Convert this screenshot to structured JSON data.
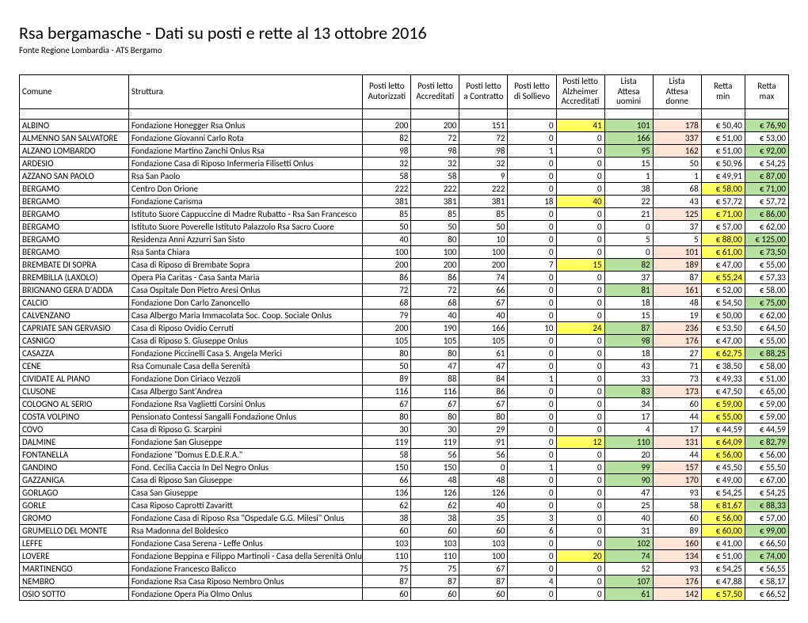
{
  "title": "Rsa bergamasche - Dati su posti e rette al 13 ottobre 2016",
  "source": "Fonte Regione Lombardia - ATS Bergamo",
  "columns": [
    "Comune",
    "Struttura",
    "Posti letto\nAutorizzati",
    "Posti letto\nAccreditati",
    "Posti letto\na Contratto",
    "Posti letto\ndi Sollievo",
    "Posti letto\nAlzheimer\nAccreditati",
    "Lista\nAttesa\nuomini",
    "Lista\nAttesa\ndonne",
    "Retta\nmin",
    "Retta\nmax"
  ],
  "colors": {
    "green": "#b7e1a1",
    "yellow": "#ffff66",
    "pink": "#fce4d6"
  },
  "rows": [
    {
      "c": "ALBINO",
      "s": "Fondazione Honegger Rsa Onlus",
      "v": [
        200,
        200,
        151,
        0,
        41,
        101,
        178
      ],
      "hl": {
        "4": "y",
        "5": "g",
        "6": "p"
      },
      "min": "€ 50,40",
      "max": "€ 76,90",
      "maxhl": "g"
    },
    {
      "c": "ALMENNO SAN SALVATORE",
      "s": "Fondazione Giovanni Carlo Rota",
      "v": [
        82,
        72,
        72,
        0,
        0,
        166,
        337
      ],
      "hl": {
        "5": "g",
        "6": "p"
      },
      "min": "€ 51,00",
      "max": "€ 53,00"
    },
    {
      "c": "ALZANO LOMBARDO",
      "s": "Fondazione Martino Zanchi Onlus Rsa",
      "v": [
        98,
        98,
        98,
        1,
        0,
        95,
        162
      ],
      "hl": {
        "5": "g",
        "6": "p"
      },
      "min": "€ 51,00",
      "max": "€ 92,00",
      "maxhl": "g"
    },
    {
      "c": "ARDESIO",
      "s": "Fondazione Casa di Riposo Infermeria Filisetti Onlus",
      "v": [
        32,
        32,
        32,
        0,
        0,
        15,
        50
      ],
      "min": "€ 50,96",
      "max": "€ 54,25"
    },
    {
      "c": "AZZANO SAN PAOLO",
      "s": "Rsa San Paolo",
      "v": [
        58,
        58,
        9,
        0,
        0,
        1,
        1
      ],
      "min": "€ 49,91",
      "max": "€ 87,00",
      "maxhl": "g"
    },
    {
      "c": "BERGAMO",
      "s": "Centro Don Orione",
      "v": [
        222,
        222,
        222,
        0,
        0,
        38,
        68
      ],
      "min": "€ 58,00",
      "minhl": "y",
      "max": "€ 71,00",
      "maxhl": "g"
    },
    {
      "c": "BERGAMO",
      "s": "Fondazione Carisma",
      "v": [
        381,
        381,
        381,
        18,
        40,
        22,
        43
      ],
      "hl": {
        "4": "y"
      },
      "min": "€ 57,72",
      "max": "€ 57,72"
    },
    {
      "c": "BERGAMO",
      "s": "Istituto Suore Cappuccine di Madre Rubatto - Rsa San Francesco",
      "v": [
        85,
        85,
        85,
        0,
        0,
        21,
        125
      ],
      "hl": {
        "6": "p"
      },
      "min": "€ 71,00",
      "minhl": "y",
      "max": "€ 86,00",
      "maxhl": "g"
    },
    {
      "c": "BERGAMO",
      "s": "Istituto Suore Poverelle Istituto Palazzolo Rsa Sacro Cuore",
      "v": [
        50,
        50,
        50,
        0,
        0,
        0,
        37
      ],
      "min": "€ 57,00",
      "max": "€ 62,00"
    },
    {
      "c": "BERGAMO",
      "s": "Residenza Anni Azzurri San Sisto",
      "v": [
        40,
        80,
        10,
        0,
        0,
        5,
        5
      ],
      "min": "€ 88,00",
      "minhl": "y",
      "max": "€ 125,00",
      "maxhl": "g"
    },
    {
      "c": "BERGAMO",
      "s": "Rsa Santa Chiara",
      "v": [
        100,
        100,
        100,
        0,
        0,
        0,
        101
      ],
      "hl": {
        "6": "p"
      },
      "min": "€ 61,00",
      "minhl": "y",
      "max": "€ 73,50",
      "maxhl": "g"
    },
    {
      "c": "BREMBATE DI SOPRA",
      "s": "Casa di Riposo di Brembate Sopra",
      "v": [
        200,
        200,
        200,
        7,
        15,
        82,
        189
      ],
      "hl": {
        "4": "y",
        "5": "g",
        "6": "p"
      },
      "min": "€ 47,00",
      "max": "€ 55,00"
    },
    {
      "c": "BREMBILLA (LAXOLO)",
      "s": "Opera Pia Caritas - Casa Santa Maria",
      "v": [
        86,
        86,
        74,
        0,
        0,
        37,
        87
      ],
      "min": "€ 55,24",
      "minhl": "y",
      "max": "€ 57,33"
    },
    {
      "c": "BRIGNANO GERA D'ADDA",
      "s": "Casa Ospitale Don Pietro Aresi Onlus",
      "v": [
        72,
        72,
        66,
        0,
        0,
        81,
        161
      ],
      "hl": {
        "5": "g",
        "6": "p"
      },
      "min": "€ 52,00",
      "max": "€ 58,00"
    },
    {
      "c": "CALCIO",
      "s": "Fondazione Don Carlo Zanoncello",
      "v": [
        68,
        68,
        67,
        0,
        0,
        18,
        48
      ],
      "min": "€ 54,50",
      "max": "€ 75,00",
      "maxhl": "g"
    },
    {
      "c": "CALVENZANO",
      "s": "Casa Albergo Maria Immacolata Soc. Coop. Sociale Onlus",
      "v": [
        79,
        40,
        40,
        0,
        0,
        15,
        19
      ],
      "min": "€ 50,00",
      "max": "€ 62,00"
    },
    {
      "c": "CAPRIATE SAN GERVASIO",
      "s": "Casa di Riposo Ovidio Cerruti",
      "v": [
        200,
        190,
        166,
        10,
        24,
        87,
        236
      ],
      "hl": {
        "4": "y",
        "5": "g",
        "6": "p"
      },
      "min": "€ 53,50",
      "max": "€ 64,50"
    },
    {
      "c": "CASNIGO",
      "s": "Casa di Riposo S. Giuseppe Onlus",
      "v": [
        105,
        105,
        105,
        0,
        0,
        98,
        176
      ],
      "hl": {
        "5": "g",
        "6": "p"
      },
      "min": "€ 47,00",
      "max": "€ 55,00"
    },
    {
      "c": "CASAZZA",
      "s": "Fondazione Piccinelli Casa S. Angela Merici",
      "v": [
        80,
        80,
        61,
        0,
        0,
        18,
        27
      ],
      "min": "€ 62,75",
      "minhl": "y",
      "max": "€ 88,25",
      "maxhl": "g"
    },
    {
      "c": "CENE",
      "s": "Rsa Comunale Casa della Serenità",
      "v": [
        50,
        47,
        47,
        0,
        0,
        43,
        71
      ],
      "min": "€ 38,50",
      "max": "€ 58,00"
    },
    {
      "c": "CIVIDATE AL PIANO",
      "s": "Fondazione Don Ciriaco Vezzoli",
      "v": [
        89,
        88,
        84,
        1,
        0,
        33,
        73
      ],
      "min": "€ 49,33",
      "max": "€ 51,00"
    },
    {
      "c": "CLUSONE",
      "s": "Casa Albergo Sant'Andrea",
      "v": [
        116,
        116,
        86,
        0,
        0,
        83,
        173
      ],
      "hl": {
        "5": "g",
        "6": "p"
      },
      "min": "€ 47,50",
      "max": "€ 65,00"
    },
    {
      "c": "COLOGNO AL SERIO",
      "s": "Fondazione Rsa Vaglietti Corsini Onlus",
      "v": [
        67,
        67,
        67,
        0,
        0,
        34,
        60
      ],
      "min": "€ 59,00",
      "minhl": "y",
      "max": "€ 59,00"
    },
    {
      "c": "COSTA VOLPINO",
      "s": "Pensionato Contessi Sangalli Fondazione Onlus",
      "v": [
        80,
        80,
        80,
        0,
        0,
        17,
        44
      ],
      "min": "€ 55,00",
      "minhl": "y",
      "max": "€ 59,00"
    },
    {
      "c": "COVO",
      "s": "Casa di Riposo G. Scarpini",
      "v": [
        30,
        30,
        29,
        0,
        0,
        4,
        17
      ],
      "min": "€ 44,59",
      "max": "€ 44,59"
    },
    {
      "c": "DALMINE",
      "s": "Fondazione San Giuseppe",
      "v": [
        119,
        119,
        91,
        0,
        12,
        110,
        131
      ],
      "hl": {
        "4": "y",
        "5": "g",
        "6": "p"
      },
      "min": "€ 64,09",
      "minhl": "y",
      "max": "€ 82,79",
      "maxhl": "g"
    },
    {
      "c": "FONTANELLA",
      "s": "Fondazione \"Domus E.D.E.R.A.\"",
      "v": [
        58,
        56,
        56,
        0,
        0,
        20,
        44
      ],
      "min": "€ 56,00",
      "minhl": "y",
      "max": "€ 56,00"
    },
    {
      "c": "GANDINO",
      "s": "Fond. Cecilia Caccia In Del Negro Onlus",
      "v": [
        150,
        150,
        0,
        1,
        0,
        99,
        157
      ],
      "hl": {
        "5": "g",
        "6": "p"
      },
      "min": "€ 45,50",
      "max": "€ 55,50"
    },
    {
      "c": "GAZZANIGA",
      "s": "Casa di Riposo San Giuseppe",
      "v": [
        66,
        48,
        48,
        0,
        0,
        90,
        170
      ],
      "hl": {
        "5": "g",
        "6": "p"
      },
      "min": "€ 49,00",
      "max": "€ 67,00"
    },
    {
      "c": "GORLAGO",
      "s": "Casa San Giuseppe",
      "v": [
        136,
        126,
        126,
        0,
        0,
        47,
        93
      ],
      "min": "€ 54,25",
      "max": "€ 54,25"
    },
    {
      "c": "GORLE",
      "s": "Casa Riposo Caprotti Zavaritt",
      "v": [
        62,
        62,
        40,
        0,
        0,
        25,
        58
      ],
      "min": "€ 81,67",
      "minhl": "y",
      "max": "€ 88,33",
      "maxhl": "g"
    },
    {
      "c": "GROMO",
      "s": "Fondazione Casa di Riposo Rsa \"Ospedale G.G. Milesi\" Onlus",
      "v": [
        38,
        38,
        35,
        3,
        0,
        40,
        60
      ],
      "min": "€ 56,00",
      "minhl": "y",
      "max": "€ 57,00"
    },
    {
      "c": "GRUMELLO DEL MONTE",
      "s": "Rsa Madonna del Boldesico",
      "v": [
        60,
        60,
        60,
        6,
        0,
        31,
        89
      ],
      "min": "€ 60,00",
      "minhl": "y",
      "max": "€ 99,00",
      "maxhl": "g"
    },
    {
      "c": "LEFFE",
      "s": "Fondazione Casa Serena - Leffe Onlus",
      "v": [
        103,
        103,
        103,
        0,
        0,
        102,
        160
      ],
      "hl": {
        "5": "g",
        "6": "p"
      },
      "min": "€ 41,00",
      "max": "€ 66,50"
    },
    {
      "c": "LOVERE",
      "s": "Fondazione Beppina e Filippo Martinoli - Casa della Serenità Onlus",
      "v": [
        110,
        110,
        100,
        0,
        20,
        74,
        134
      ],
      "hl": {
        "4": "y",
        "5": "g",
        "6": "p"
      },
      "min": "€ 51,00",
      "max": "€ 74,00",
      "maxhl": "g"
    },
    {
      "c": "MARTINENGO",
      "s": "Fondazione Francesco Balicco",
      "v": [
        75,
        75,
        67,
        0,
        0,
        52,
        93
      ],
      "min": "€ 54,25",
      "max": "€ 56,55"
    },
    {
      "c": "NEMBRO",
      "s": "Fondazione Rsa Casa Riposo Nembro Onlus",
      "v": [
        87,
        87,
        87,
        4,
        0,
        107,
        176
      ],
      "hl": {
        "5": "g",
        "6": "p"
      },
      "min": "€ 47,88",
      "max": "€ 58,17"
    },
    {
      "c": "OSIO SOTTO",
      "s": "Fondazione Opera Pia Olmo Onlus",
      "v": [
        60,
        60,
        60,
        0,
        0,
        61,
        142
      ],
      "hl": {
        "5": "g",
        "6": "p"
      },
      "min": "€ 57,50",
      "minhl": "y",
      "max": "€ 66,52"
    }
  ]
}
